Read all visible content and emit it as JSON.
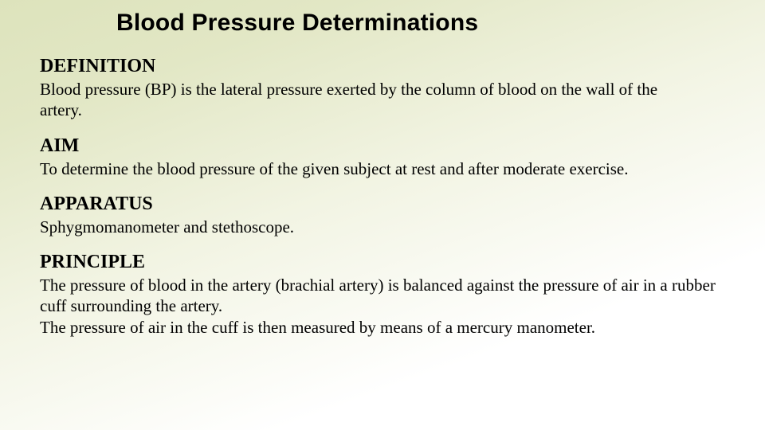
{
  "slide": {
    "background": {
      "gradient_stops": [
        "#dde3bc",
        "#e2e7c5",
        "#f2f4e3",
        "#ffffff"
      ],
      "gradient_angle_deg": 160
    },
    "title": {
      "text": "Blood Pressure Determinations",
      "font_family": "Arial",
      "font_weight": 700,
      "font_size_pt": 22,
      "color": "#000000"
    },
    "sections": {
      "definition": {
        "heading": "DEFINITION",
        "body": "Blood pressure (BP) is the lateral pressure exerted by the column of blood on the wall of the artery."
      },
      "aim": {
        "heading": "AIM",
        "body": "To determine the blood pressure of the given subject at rest and after moderate exercise."
      },
      "apparatus": {
        "heading": "APPARATUS",
        "body": "Sphygmomanometer and stethoscope."
      },
      "principle": {
        "heading": "PRINCIPLE",
        "body_line1": "The pressure of blood in the artery (brachial artery) is balanced against the pressure of air in a rubber cuff surrounding the artery.",
        "body_line2": " The pressure of air in the cuff is then measured by means of a mercury manometer."
      }
    },
    "typography": {
      "heading_font_family": "Times New Roman",
      "heading_font_weight": 700,
      "heading_font_size_pt": 18,
      "body_font_family": "Times New Roman",
      "body_font_weight": 400,
      "body_font_size_pt": 16,
      "text_color": "#000000"
    }
  }
}
